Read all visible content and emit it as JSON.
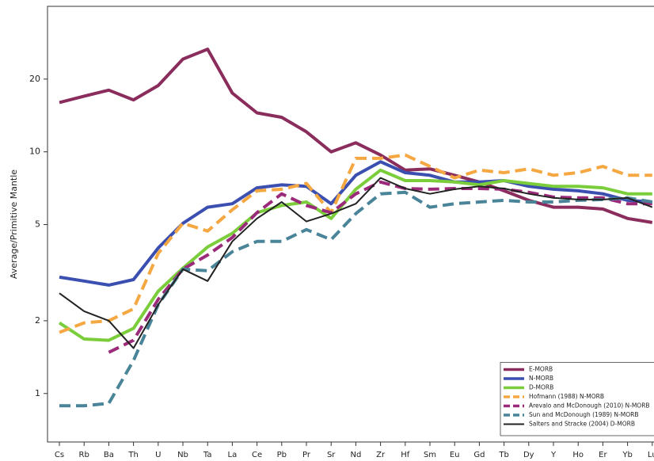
{
  "chart_data": {
    "type": "line",
    "y_label": "Average/Primitive Mantle",
    "log_y": true,
    "legend": "lower right",
    "categories": [
      "Cs",
      "Rb",
      "Ba",
      "Th",
      "U",
      "Nb",
      "Ta",
      "La",
      "Ce",
      "Pb",
      "Pr",
      "Sr",
      "Nd",
      "Zr",
      "Hf",
      "Sm",
      "Eu",
      "Gd",
      "Tb",
      "Dy",
      "Y",
      "Ho",
      "Er",
      "Yb",
      "Lu"
    ],
    "ylim": [
      0.63,
      40
    ],
    "yticks": [
      1,
      2,
      5,
      10,
      20
    ],
    "series": [
      {
        "name": "E-MORB",
        "color": "#8b2d5c",
        "dashed": false,
        "values": [
          16,
          17,
          18,
          16.4,
          18.8,
          24.2,
          26.6,
          17.5,
          14.5,
          13.9,
          12.1,
          10,
          10.9,
          9.7,
          8.4,
          8.5,
          8,
          7.5,
          6.9,
          6.3,
          5.9,
          5.9,
          5.8,
          5.3,
          5.1
        ]
      },
      {
        "name": "N-MORB",
        "color": "#3b4fb0",
        "dashed": false,
        "values": [
          3.03,
          2.92,
          2.81,
          2.96,
          4,
          5.06,
          5.9,
          6.1,
          7.1,
          7.3,
          7.2,
          6.1,
          8,
          9.1,
          8.2,
          8,
          7.5,
          7.5,
          7.6,
          7.2,
          7,
          6.9,
          6.7,
          6.3,
          6.2
        ]
      },
      {
        "name": "D-MORB",
        "color": "#7ccd3c",
        "dashed": false,
        "values": [
          1.96,
          1.68,
          1.66,
          1.86,
          2.65,
          3.3,
          4.04,
          4.6,
          5.6,
          6,
          6.2,
          5.3,
          7,
          8.4,
          7.6,
          7.6,
          7.5,
          7.3,
          7.6,
          7.4,
          7.2,
          7.2,
          7.1,
          6.7,
          6.7
        ]
      },
      {
        "name": "Hofmann (1988) N-MORB",
        "color": "#f5a742",
        "dashed": true,
        "values": [
          1.79,
          1.96,
          2,
          2.24,
          3.8,
          5.06,
          4.7,
          5.76,
          6.9,
          7,
          7.4,
          5.6,
          9.4,
          9.4,
          9.7,
          8.7,
          7.8,
          8.4,
          8.2,
          8.5,
          8,
          8.2,
          8.7,
          8,
          8
        ]
      },
      {
        "name": "Arevalo and McDonough (2010) N-MORB",
        "color": "#9c2a7a",
        "dashed": true,
        "values": [
          null,
          null,
          1.48,
          1.66,
          2.45,
          3.27,
          3.74,
          4.42,
          5.6,
          6.7,
          6,
          5.6,
          6.7,
          7.5,
          7.05,
          7,
          7.05,
          7.05,
          7,
          6.8,
          6.5,
          6.45,
          6.45,
          6.1,
          6.1
        ]
      },
      {
        "name": "Sun and McDonough (1989) N-MORB",
        "color": "#4a8499",
        "dashed": true,
        "values": [
          0.89,
          0.89,
          0.91,
          1.37,
          2.33,
          3.27,
          3.22,
          3.86,
          4.26,
          4.26,
          4.77,
          4.33,
          5.55,
          6.7,
          6.8,
          5.9,
          6.1,
          6.2,
          6.3,
          6.2,
          6.2,
          6.3,
          6.35,
          6.45,
          6.2
        ]
      },
      {
        "name": "Salters and Stracke (2004) D-MORB",
        "color": "#222222",
        "dashed": false,
        "values": [
          2.6,
          2.19,
          2,
          1.54,
          2.33,
          3.27,
          2.92,
          4.26,
          5.3,
          6.2,
          5.15,
          5.55,
          6.1,
          7.8,
          7.05,
          6.7,
          7,
          7.2,
          7.05,
          6.7,
          6.45,
          6.35,
          6.35,
          6.45,
          5.9
        ]
      }
    ]
  }
}
